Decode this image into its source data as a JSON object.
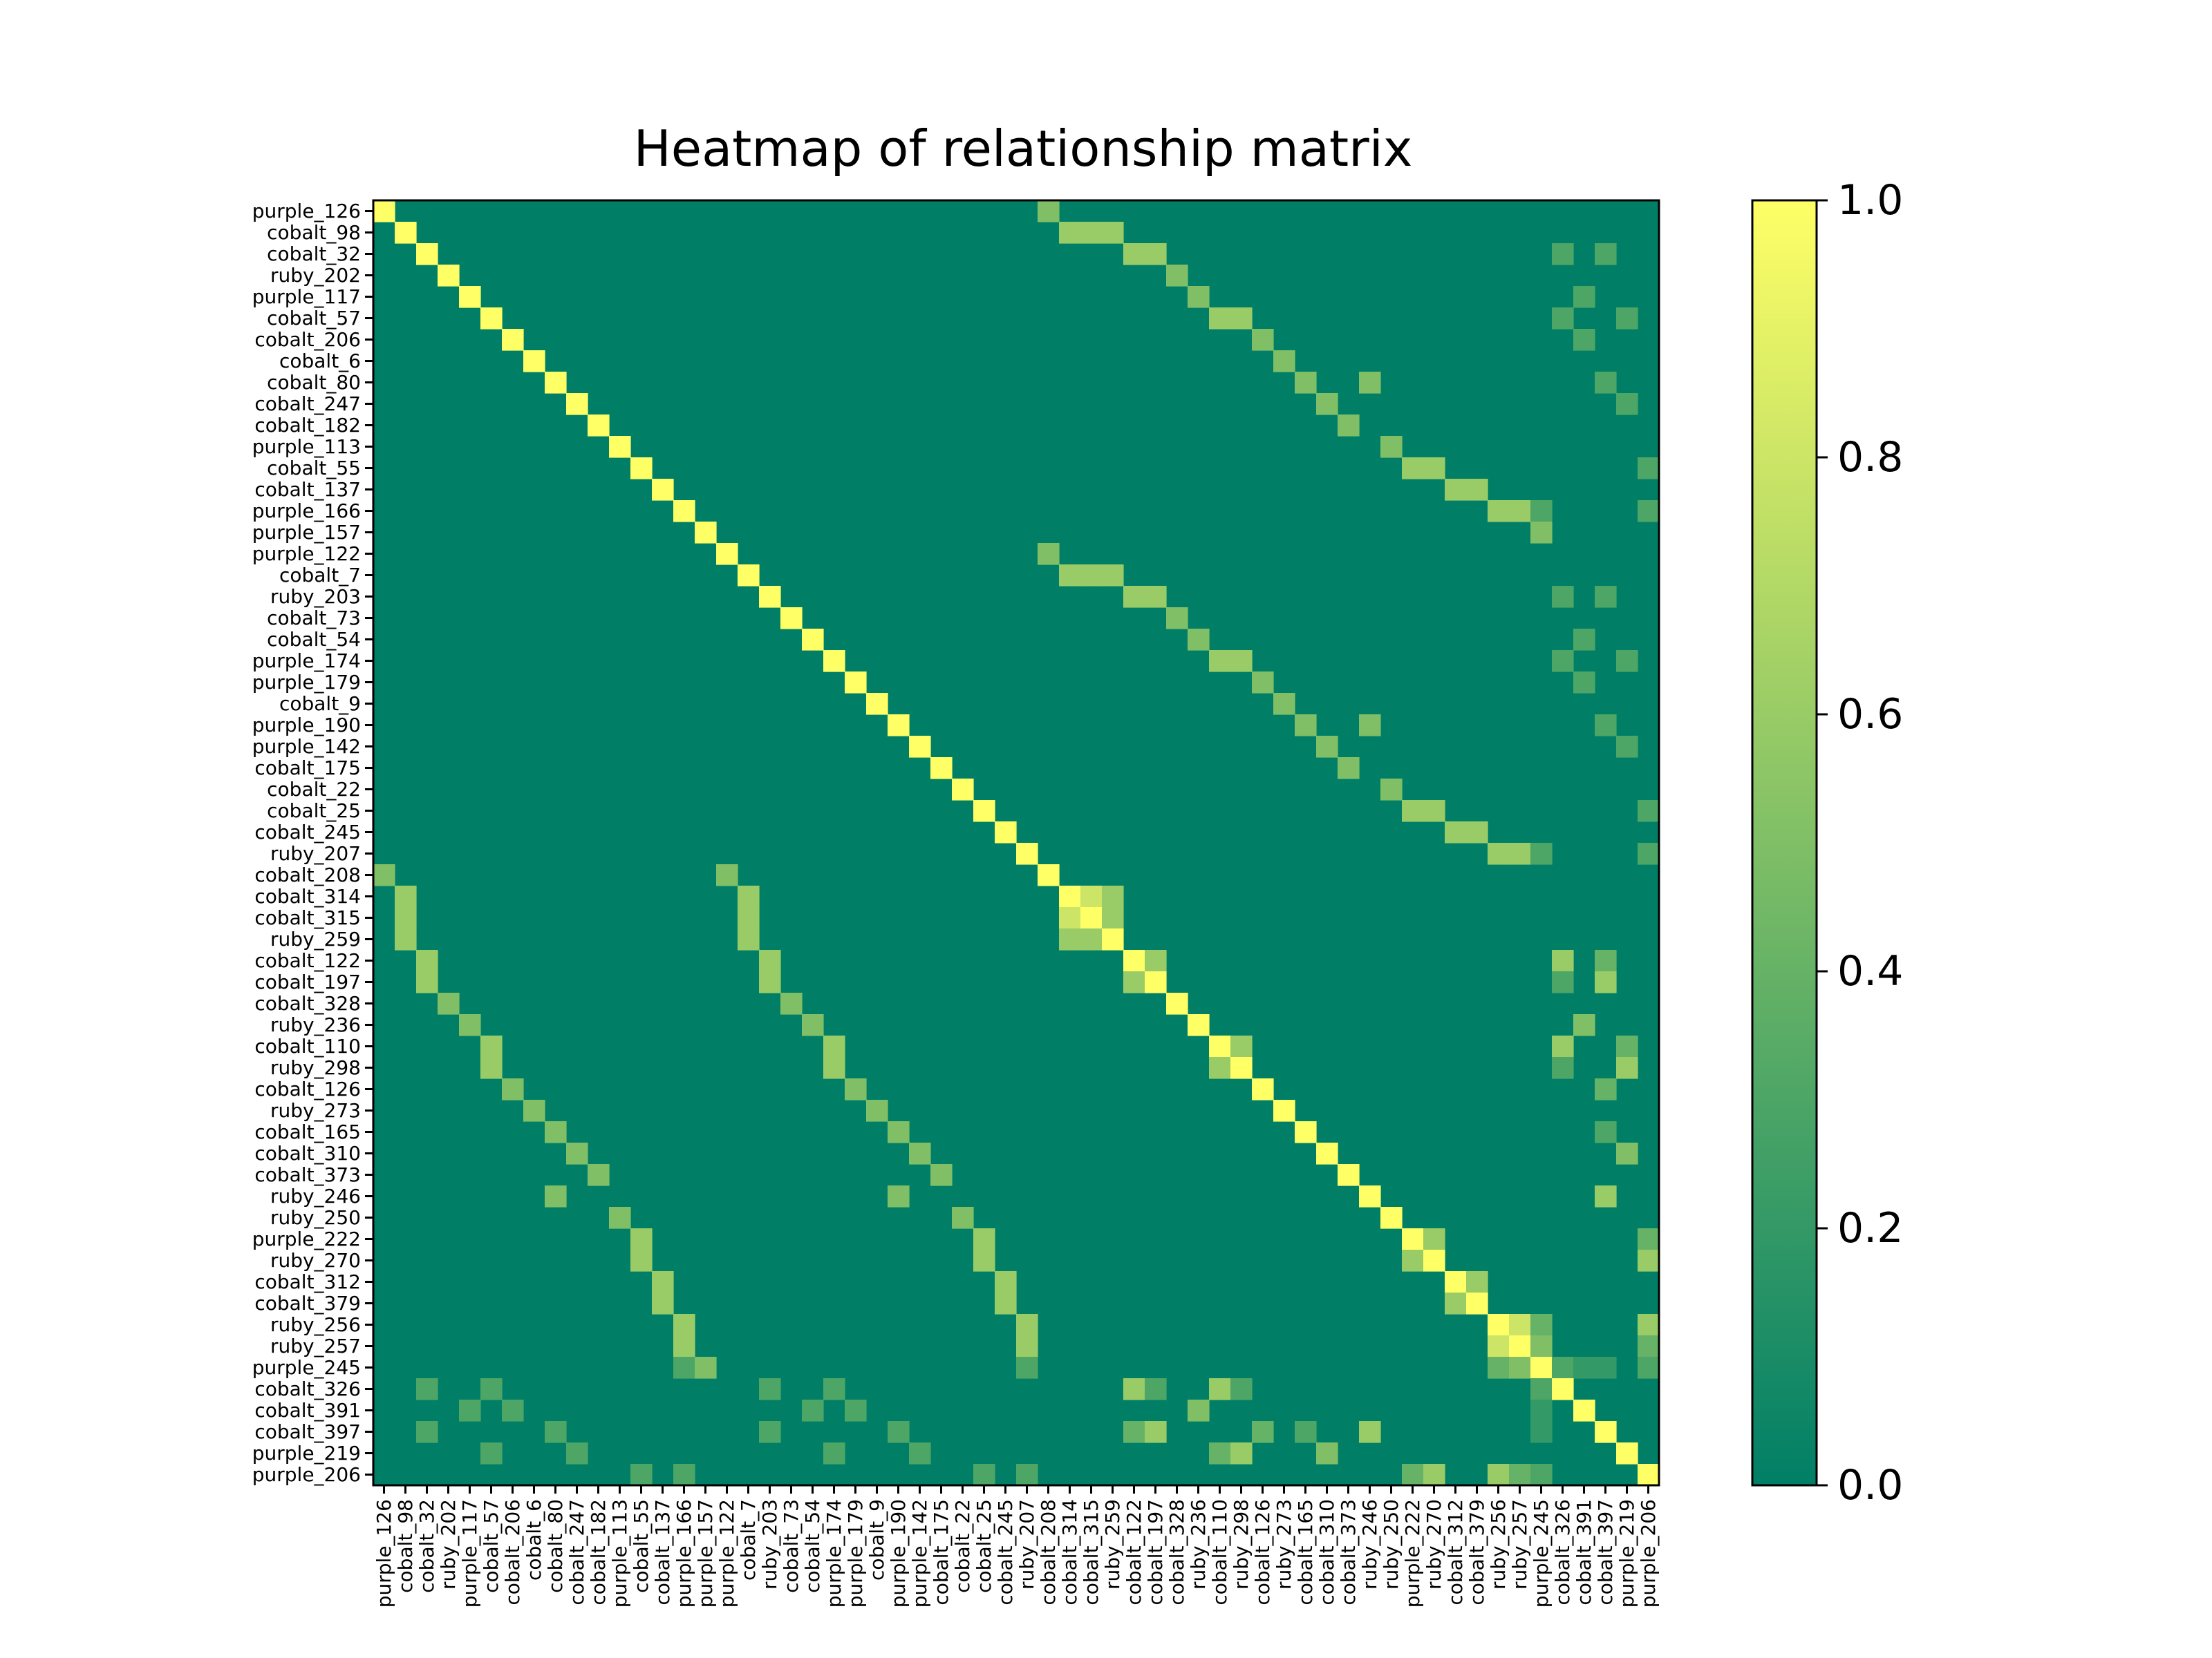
{
  "chart_data": {
    "type": "heatmap",
    "title": "Heatmap of relationship matrix",
    "labels": [
      "purple_126",
      "cobalt_98",
      "cobalt_32",
      "ruby_202",
      "purple_117",
      "cobalt_57",
      "cobalt_206",
      "cobalt_6",
      "cobalt_80",
      "cobalt_247",
      "cobalt_182",
      "purple_113",
      "cobalt_55",
      "cobalt_137",
      "purple_166",
      "purple_157",
      "purple_122",
      "cobalt_7",
      "ruby_203",
      "cobalt_73",
      "cobalt_54",
      "purple_174",
      "purple_179",
      "cobalt_9",
      "purple_190",
      "purple_142",
      "cobalt_175",
      "cobalt_22",
      "cobalt_25",
      "cobalt_245",
      "ruby_207",
      "cobalt_208",
      "cobalt_314",
      "cobalt_315",
      "ruby_259",
      "cobalt_122",
      "cobalt_197",
      "cobalt_328",
      "ruby_236",
      "cobalt_110",
      "ruby_298",
      "cobalt_126",
      "ruby_273",
      "cobalt_165",
      "cobalt_310",
      "cobalt_373",
      "ruby_246",
      "ruby_250",
      "purple_222",
      "ruby_270",
      "cobalt_312",
      "cobalt_379",
      "ruby_256",
      "ruby_257",
      "purple_245",
      "cobalt_326",
      "cobalt_391",
      "cobalt_397",
      "purple_219",
      "purple_206"
    ],
    "value_range": [
      0.0,
      1.0
    ],
    "colormap": [
      "#007f66",
      "#ffff66"
    ],
    "colorbar": {
      "ticks": [
        0.0,
        0.2,
        0.4,
        0.6,
        0.8,
        1.0
      ],
      "tick_labels": [
        "0.0",
        "0.2",
        "0.4",
        "0.6",
        "0.8",
        "1.0"
      ]
    },
    "diagonal_value": 1.0,
    "background_value": 0.0,
    "pairs": [
      [
        0,
        31,
        0.5
      ],
      [
        16,
        31,
        0.5
      ],
      [
        1,
        32,
        0.6
      ],
      [
        1,
        33,
        0.6
      ],
      [
        1,
        34,
        0.6
      ],
      [
        17,
        32,
        0.6
      ],
      [
        17,
        33,
        0.6
      ],
      [
        17,
        34,
        0.6
      ],
      [
        2,
        35,
        0.6
      ],
      [
        2,
        36,
        0.6
      ],
      [
        18,
        35,
        0.6
      ],
      [
        18,
        36,
        0.6
      ],
      [
        3,
        37,
        0.5
      ],
      [
        19,
        37,
        0.5
      ],
      [
        4,
        38,
        0.5
      ],
      [
        20,
        38,
        0.5
      ],
      [
        5,
        39,
        0.6
      ],
      [
        5,
        40,
        0.6
      ],
      [
        21,
        39,
        0.6
      ],
      [
        21,
        40,
        0.6
      ],
      [
        6,
        41,
        0.5
      ],
      [
        22,
        41,
        0.5
      ],
      [
        7,
        42,
        0.5
      ],
      [
        23,
        42,
        0.5
      ],
      [
        8,
        43,
        0.5
      ],
      [
        8,
        46,
        0.5
      ],
      [
        24,
        43,
        0.5
      ],
      [
        24,
        46,
        0.5
      ],
      [
        9,
        44,
        0.5
      ],
      [
        25,
        44,
        0.5
      ],
      [
        10,
        45,
        0.5
      ],
      [
        26,
        45,
        0.5
      ],
      [
        11,
        47,
        0.5
      ],
      [
        27,
        47,
        0.5
      ],
      [
        12,
        48,
        0.6
      ],
      [
        12,
        49,
        0.6
      ],
      [
        28,
        48,
        0.6
      ],
      [
        28,
        49,
        0.6
      ],
      [
        13,
        50,
        0.6
      ],
      [
        13,
        51,
        0.6
      ],
      [
        29,
        50,
        0.6
      ],
      [
        29,
        51,
        0.6
      ],
      [
        14,
        52,
        0.6
      ],
      [
        14,
        53,
        0.6
      ],
      [
        14,
        54,
        0.3
      ],
      [
        30,
        52,
        0.6
      ],
      [
        30,
        53,
        0.6
      ],
      [
        30,
        54,
        0.3
      ],
      [
        15,
        54,
        0.5
      ],
      [
        32,
        33,
        0.8
      ],
      [
        32,
        34,
        0.6
      ],
      [
        33,
        34,
        0.6
      ],
      [
        35,
        36,
        0.6
      ],
      [
        39,
        40,
        0.6
      ],
      [
        48,
        49,
        0.6
      ],
      [
        50,
        51,
        0.6
      ],
      [
        52,
        53,
        0.8
      ],
      [
        52,
        54,
        0.4
      ],
      [
        53,
        54,
        0.5
      ],
      [
        2,
        55,
        0.3
      ],
      [
        2,
        57,
        0.3
      ],
      [
        18,
        55,
        0.3
      ],
      [
        18,
        57,
        0.3
      ],
      [
        4,
        56,
        0.3
      ],
      [
        20,
        56,
        0.3
      ],
      [
        5,
        55,
        0.3
      ],
      [
        5,
        58,
        0.3
      ],
      [
        21,
        55,
        0.3
      ],
      [
        21,
        58,
        0.3
      ],
      [
        6,
        56,
        0.3
      ],
      [
        22,
        56,
        0.3
      ],
      [
        8,
        57,
        0.3
      ],
      [
        24,
        57,
        0.3
      ],
      [
        9,
        58,
        0.3
      ],
      [
        25,
        58,
        0.3
      ],
      [
        12,
        59,
        0.3
      ],
      [
        28,
        59,
        0.3
      ],
      [
        14,
        59,
        0.3
      ],
      [
        30,
        59,
        0.3
      ],
      [
        35,
        55,
        0.6
      ],
      [
        35,
        57,
        0.4
      ],
      [
        36,
        55,
        0.3
      ],
      [
        36,
        57,
        0.6
      ],
      [
        38,
        56,
        0.5
      ],
      [
        39,
        55,
        0.6
      ],
      [
        39,
        58,
        0.4
      ],
      [
        40,
        55,
        0.3
      ],
      [
        40,
        58,
        0.6
      ],
      [
        41,
        57,
        0.4
      ],
      [
        43,
        57,
        0.3
      ],
      [
        44,
        58,
        0.5
      ],
      [
        46,
        57,
        0.6
      ],
      [
        48,
        59,
        0.4
      ],
      [
        49,
        59,
        0.6
      ],
      [
        52,
        59,
        0.6
      ],
      [
        53,
        59,
        0.4
      ],
      [
        54,
        59,
        0.3
      ],
      [
        54,
        55,
        0.3
      ],
      [
        54,
        56,
        0.2
      ],
      [
        54,
        57,
        0.2
      ]
    ]
  }
}
